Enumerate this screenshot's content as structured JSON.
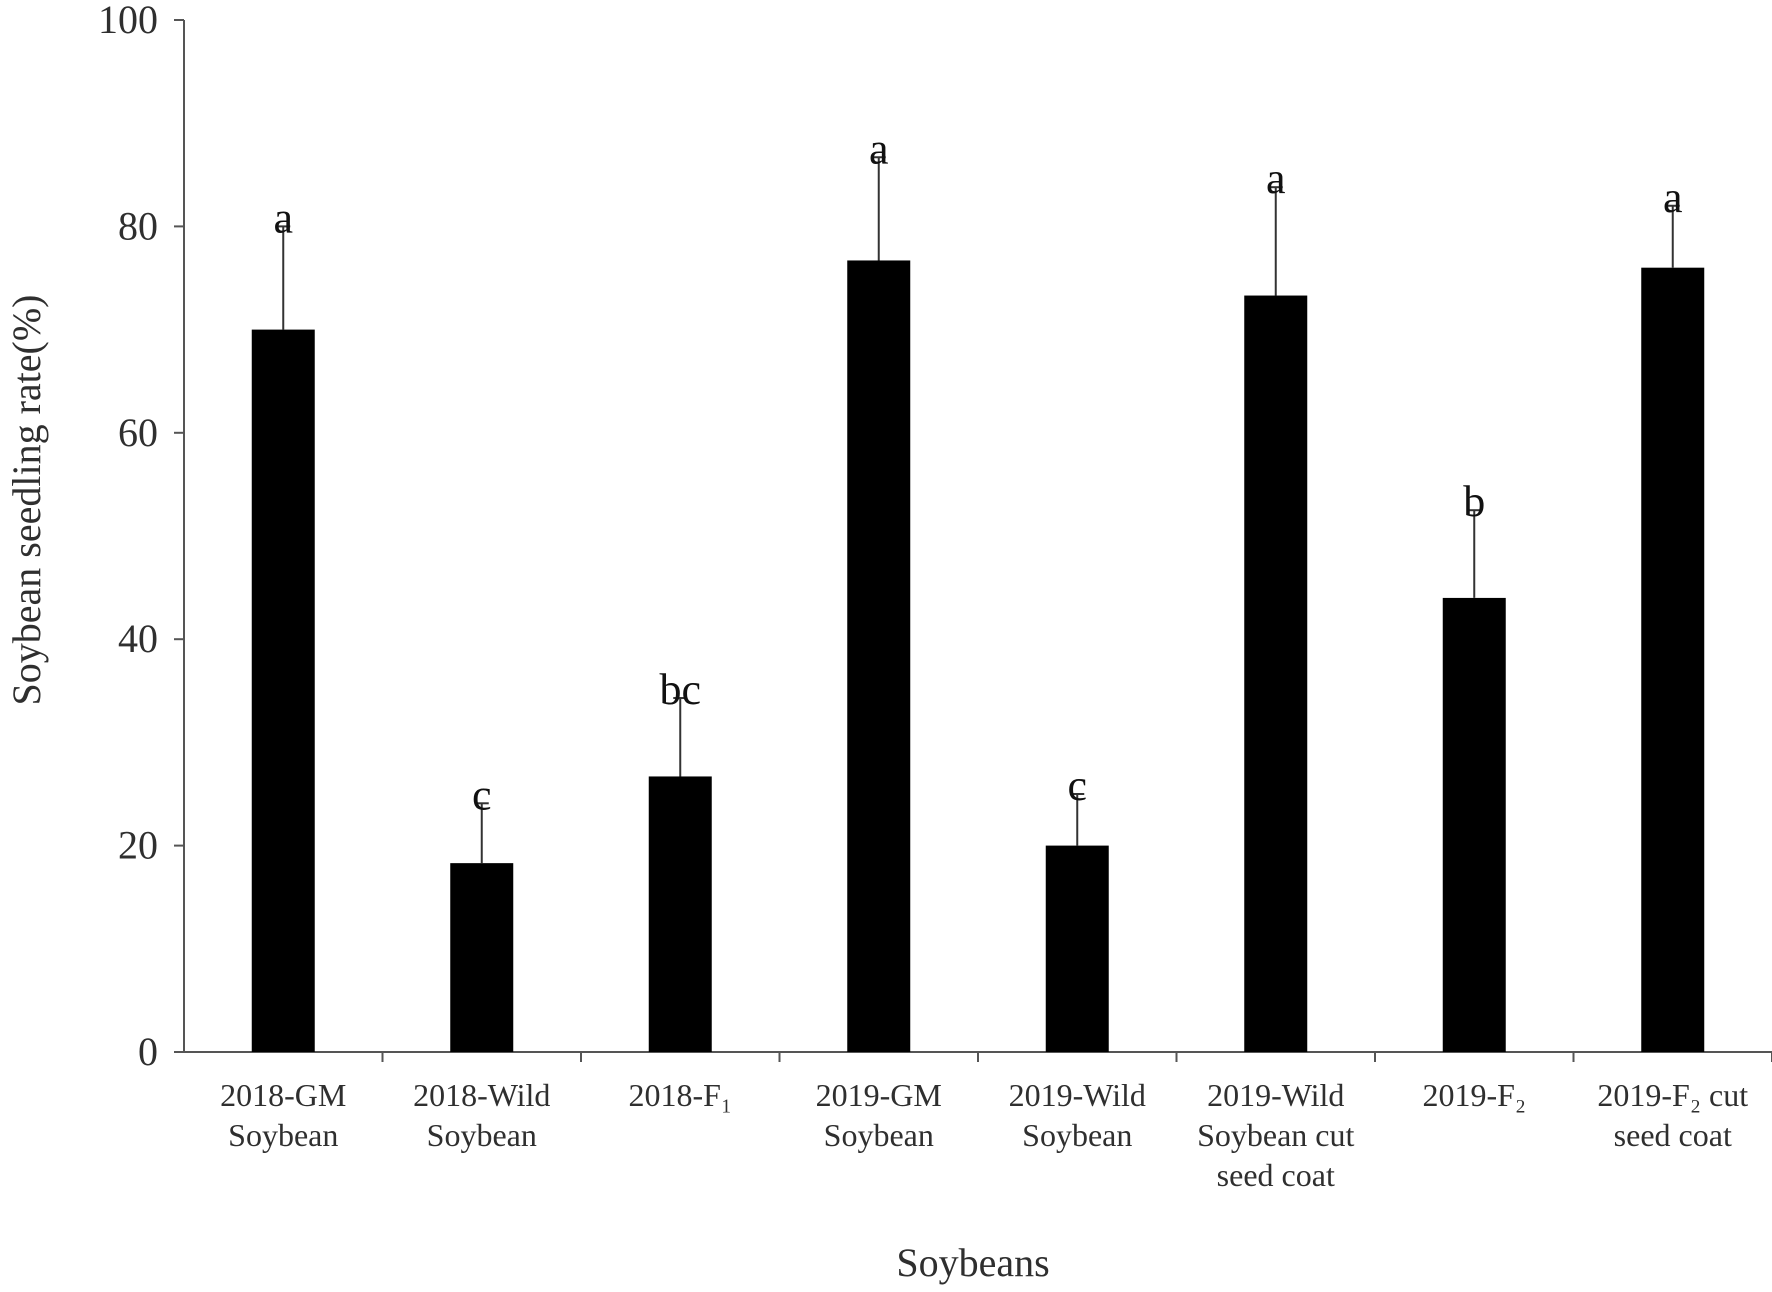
{
  "chart_data": {
    "type": "bar",
    "title": "",
    "xlabel": "Soybeans",
    "ylabel": "Soybean seedling rate(%)",
    "ylim": [
      0,
      100
    ],
    "yticks": [
      0,
      20,
      40,
      60,
      80,
      100
    ],
    "categories": [
      [
        "2018-GM",
        "Soybean"
      ],
      [
        "2018-Wild",
        "Soybean"
      ],
      [
        "2018-F₁"
      ],
      [
        "2019-GM",
        "Soybean"
      ],
      [
        "2019-Wild",
        "Soybean"
      ],
      [
        "2019-Wild",
        "Soybean cut",
        "seed coat"
      ],
      [
        "2019-F₂"
      ],
      [
        "2019-F₂ cut",
        "seed coat"
      ]
    ],
    "values": [
      70,
      18.3,
      26.7,
      76.7,
      20,
      73.3,
      44,
      76
    ],
    "errors": [
      10,
      5.8,
      7.6,
      10,
      5,
      10.5,
      8.5,
      6
    ],
    "significance_letters": [
      "a",
      "c",
      "bc",
      "a",
      "c",
      "a",
      "b",
      "a"
    ],
    "bar_color": "#000000",
    "grid": false,
    "legend": "none"
  }
}
